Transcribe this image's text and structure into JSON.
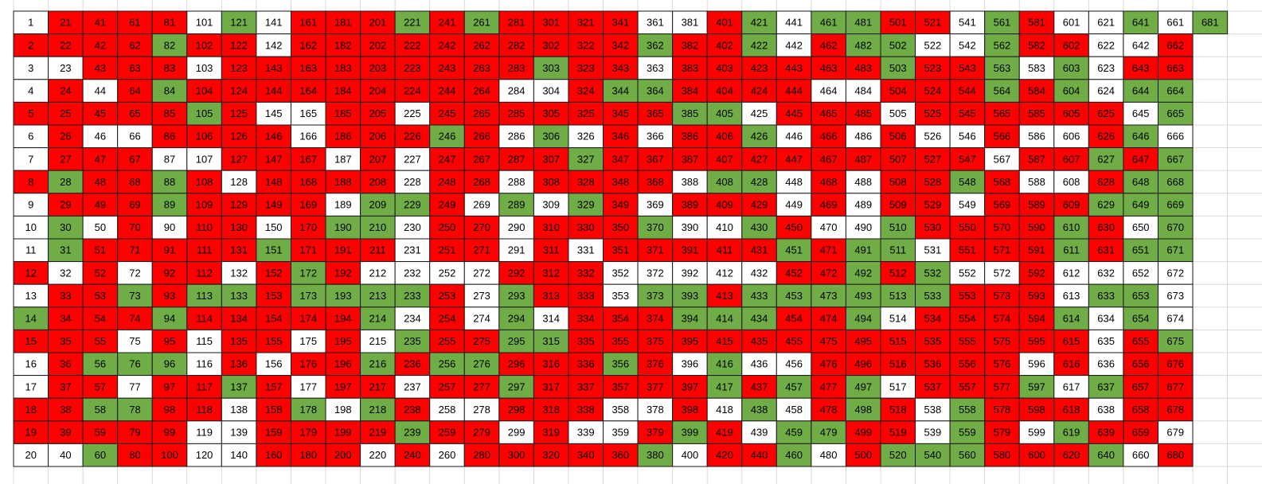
{
  "table": {
    "palette": {
      "r": "#ff0000",
      "g": "#70ad47",
      "w": "#ffffff"
    },
    "fills": [
      "wrrrrwgwrrrgrgrrrrwwrgwggrrwgrwwgwg",
      "rrrrgrrwrrrrrrrrrrgrrgwrggwwgrrwwr",
      "wwrrrwrrrrrrrrrgrrwrrrrrrgrrgwgwrr",
      "wrwrgrrrrrrrrrwwrggrrrrwwrrrgrgwgg",
      "rrrrrgrwwrrwrrrrrrrggwrrrwrrrrrrwg",
      "wrwwrrrrwrrrgrwgwrwrrgwrwrwwrwwrgw",
      "wrrrwwrrrwrwrrrrgrrrrrrrrrrrwrrgrg",
      "rgrrgrwrrrrwrrwrrrrwggwrwrrgrwwrgg",
      "wrrrgrrrrwggrwgwgrwrrrwrwrrwrrrggg",
      "wgwrwrrwrggwrrwrrrgwwgrwwgrrrrgrwg",
      "wgrrrrrgrrrwrrwrwrrrrrgrggwrrrgrgg",
      "rwrwrrwrgrwwwwrrrwwwwwrrgrgwwrwwww",
      "wrrgrggrggggrwgrrwggrggggggrrrwggw",
      "grrrgrrrrrgwrwgwrrrgggrrgwrrrrgwgw",
      "rrrwrwrrwrwgrrggrrrrrrrrrrrrrrrwrg",
      "wrgggwrwrrgrggrrrgrwgwwrrrrrrwrwrr",
      "wrrwrrgrwrrwrrgrrrrrgrgrgwrrrgwgrr",
      "rrggrrwrgwgrwwrrrwwrwgwrgrwgrrrwrr",
      "rrrrrwwrrrrgrrwrwwrgrwggrrwgrwgrrw",
      "wwgrrwwrrrwrwrrrrrgwrrgwrgggrrrgwr"
    ],
    "rows": [
      [
        1,
        21,
        41,
        61,
        81,
        101,
        121,
        141,
        161,
        181,
        201,
        221,
        241,
        261,
        281,
        301,
        321,
        341,
        361,
        381,
        401,
        421,
        441,
        461,
        481,
        501,
        521,
        541,
        561,
        581,
        601,
        621,
        641,
        661,
        681
      ],
      [
        2,
        22,
        42,
        62,
        82,
        102,
        122,
        142,
        162,
        182,
        202,
        222,
        242,
        262,
        282,
        302,
        322,
        342,
        362,
        382,
        402,
        422,
        442,
        462,
        482,
        502,
        522,
        542,
        562,
        582,
        602,
        622,
        642,
        662
      ],
      [
        3,
        23,
        43,
        63,
        83,
        103,
        123,
        143,
        163,
        183,
        203,
        223,
        243,
        263,
        283,
        303,
        323,
        343,
        363,
        383,
        403,
        423,
        443,
        463,
        483,
        503,
        523,
        543,
        563,
        583,
        603,
        623,
        643,
        663
      ],
      [
        4,
        24,
        44,
        64,
        84,
        104,
        124,
        144,
        164,
        184,
        204,
        224,
        244,
        264,
        284,
        304,
        324,
        344,
        364,
        384,
        404,
        424,
        444,
        464,
        484,
        504,
        524,
        544,
        564,
        584,
        604,
        624,
        644,
        664
      ],
      [
        5,
        25,
        45,
        65,
        85,
        105,
        125,
        145,
        165,
        185,
        205,
        225,
        245,
        265,
        285,
        305,
        325,
        345,
        365,
        385,
        405,
        425,
        445,
        465,
        485,
        505,
        525,
        545,
        565,
        585,
        605,
        625,
        645,
        665
      ],
      [
        6,
        26,
        46,
        66,
        86,
        106,
        126,
        146,
        166,
        186,
        206,
        226,
        246,
        266,
        286,
        306,
        326,
        346,
        366,
        386,
        406,
        426,
        446,
        466,
        486,
        506,
        526,
        546,
        566,
        586,
        606,
        626,
        646,
        666
      ],
      [
        7,
        27,
        47,
        67,
        87,
        107,
        127,
        147,
        167,
        187,
        207,
        227,
        247,
        267,
        287,
        307,
        327,
        347,
        367,
        387,
        407,
        427,
        447,
        467,
        487,
        507,
        527,
        547,
        567,
        587,
        607,
        627,
        647,
        667
      ],
      [
        8,
        28,
        48,
        68,
        88,
        108,
        128,
        148,
        168,
        188,
        208,
        228,
        248,
        268,
        288,
        308,
        328,
        348,
        368,
        388,
        408,
        428,
        448,
        468,
        488,
        508,
        528,
        548,
        568,
        588,
        608,
        628,
        648,
        668
      ],
      [
        9,
        29,
        49,
        69,
        89,
        109,
        129,
        149,
        169,
        189,
        209,
        229,
        249,
        269,
        289,
        309,
        329,
        349,
        369,
        389,
        409,
        429,
        449,
        469,
        489,
        509,
        529,
        549,
        569,
        589,
        609,
        629,
        649,
        669
      ],
      [
        10,
        30,
        50,
        70,
        90,
        110,
        130,
        150,
        170,
        190,
        210,
        230,
        250,
        270,
        290,
        310,
        330,
        350,
        370,
        390,
        410,
        430,
        450,
        470,
        490,
        510,
        530,
        550,
        570,
        590,
        610,
        630,
        650,
        670
      ],
      [
        11,
        31,
        51,
        71,
        91,
        111,
        131,
        151,
        171,
        191,
        211,
        231,
        251,
        271,
        291,
        311,
        331,
        351,
        371,
        391,
        411,
        431,
        451,
        471,
        491,
        511,
        531,
        551,
        571,
        591,
        611,
        631,
        651,
        671
      ],
      [
        12,
        32,
        52,
        72,
        92,
        112,
        132,
        152,
        172,
        192,
        212,
        232,
        252,
        272,
        292,
        312,
        332,
        352,
        372,
        392,
        412,
        432,
        452,
        472,
        492,
        512,
        532,
        552,
        572,
        592,
        612,
        632,
        652,
        672
      ],
      [
        13,
        33,
        53,
        73,
        93,
        113,
        133,
        153,
        173,
        193,
        213,
        233,
        253,
        273,
        293,
        313,
        333,
        353,
        373,
        393,
        413,
        433,
        453,
        473,
        493,
        513,
        533,
        553,
        573,
        593,
        613,
        633,
        653,
        673
      ],
      [
        14,
        34,
        54,
        74,
        94,
        114,
        134,
        154,
        174,
        194,
        214,
        234,
        254,
        274,
        294,
        314,
        334,
        354,
        374,
        394,
        414,
        434,
        454,
        474,
        494,
        514,
        534,
        554,
        574,
        594,
        614,
        634,
        654,
        674
      ],
      [
        15,
        35,
        55,
        75,
        95,
        115,
        135,
        155,
        175,
        195,
        215,
        235,
        255,
        275,
        295,
        315,
        335,
        355,
        375,
        395,
        415,
        435,
        455,
        475,
        495,
        515,
        535,
        555,
        575,
        595,
        615,
        635,
        655,
        675
      ],
      [
        16,
        36,
        56,
        76,
        96,
        116,
        136,
        156,
        176,
        196,
        216,
        236,
        256,
        276,
        296,
        316,
        336,
        356,
        376,
        396,
        416,
        436,
        456,
        476,
        496,
        516,
        536,
        556,
        576,
        596,
        616,
        636,
        656,
        676
      ],
      [
        17,
        37,
        57,
        77,
        97,
        117,
        137,
        157,
        177,
        197,
        217,
        237,
        257,
        277,
        297,
        317,
        337,
        357,
        377,
        397,
        417,
        437,
        457,
        477,
        497,
        517,
        537,
        557,
        577,
        597,
        617,
        637,
        657,
        677
      ],
      [
        18,
        38,
        58,
        78,
        98,
        118,
        138,
        158,
        178,
        198,
        218,
        238,
        258,
        278,
        298,
        318,
        338,
        358,
        378,
        398,
        418,
        438,
        458,
        478,
        498,
        518,
        538,
        558,
        578,
        598,
        618,
        638,
        658,
        678
      ],
      [
        19,
        39,
        59,
        79,
        99,
        119,
        139,
        159,
        179,
        199,
        219,
        239,
        259,
        279,
        299,
        319,
        339,
        359,
        379,
        399,
        419,
        439,
        459,
        479,
        499,
        519,
        539,
        559,
        579,
        599,
        619,
        639,
        659,
        679
      ],
      [
        20,
        40,
        60,
        80,
        100,
        120,
        140,
        160,
        180,
        200,
        220,
        240,
        260,
        280,
        300,
        320,
        340,
        360,
        380,
        400,
        420,
        440,
        460,
        480,
        500,
        520,
        540,
        560,
        580,
        600,
        620,
        640,
        660,
        680
      ]
    ]
  }
}
